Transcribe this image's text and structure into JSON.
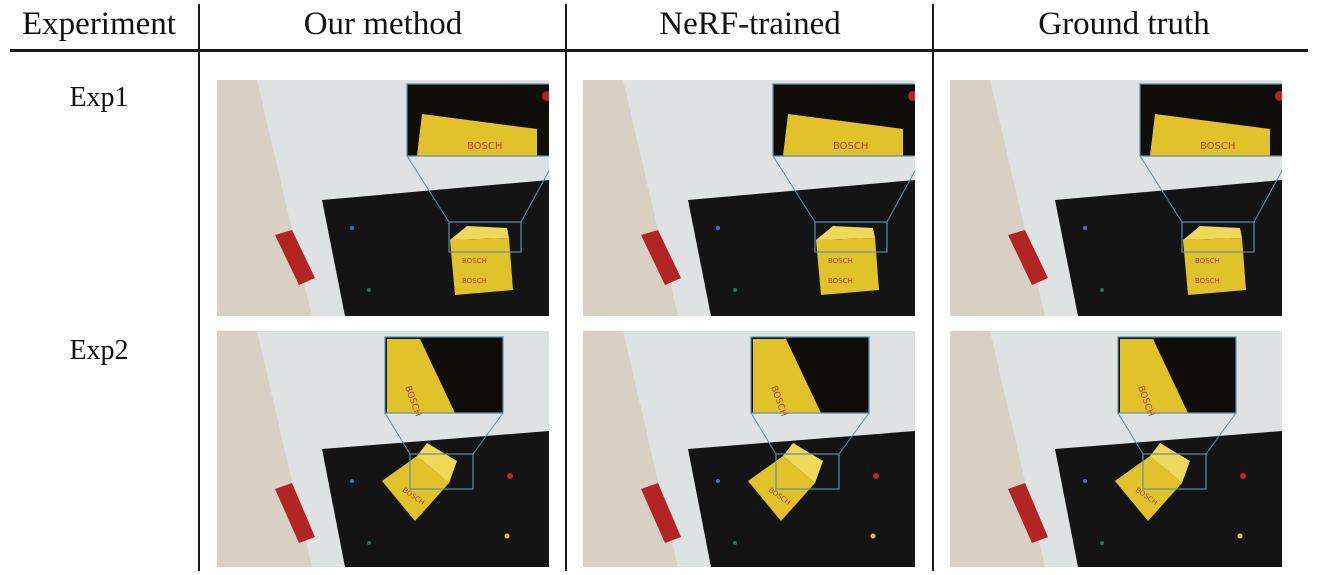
{
  "table": {
    "columns": [
      "Experiment",
      "Our method",
      "NeRF-trained",
      "Ground truth"
    ],
    "rows": [
      {
        "label": "Exp1",
        "images": [
          "exp1-our-method",
          "exp1-nerf-trained",
          "exp1-ground-truth"
        ]
      },
      {
        "label": "Exp2",
        "images": [
          "exp2-our-method",
          "exp2-nerf-trained",
          "exp2-ground-truth"
        ]
      }
    ]
  },
  "colors": {
    "paper": "#dfe2e2",
    "board": "#141414",
    "box": "#e2c22a",
    "box_text": "#b5432a",
    "red_object": "#b32424",
    "zoom_frame": "#5b8fa8"
  },
  "image_text": {
    "box_brand": "BOSCH"
  }
}
